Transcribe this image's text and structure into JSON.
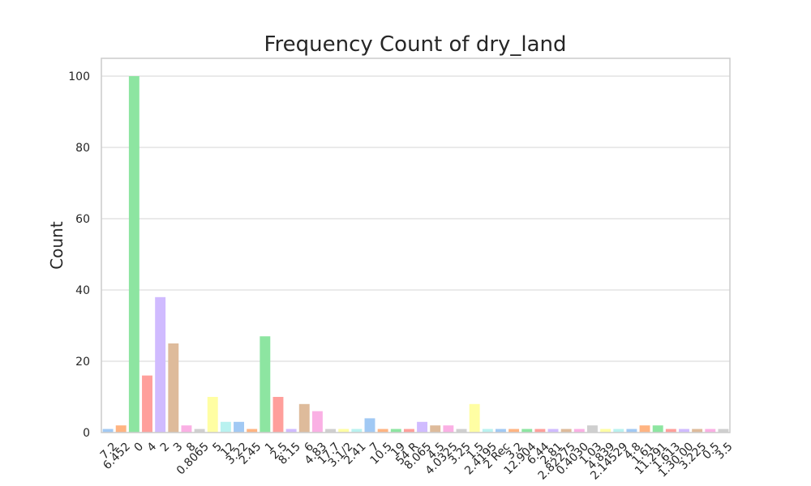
{
  "chart_data": {
    "type": "bar",
    "title": "Frequency Count of dry_land",
    "xlabel": "",
    "ylabel": "Count",
    "ylim": [
      0,
      105
    ],
    "yticks": [
      0,
      20,
      40,
      60,
      80,
      100
    ],
    "grid": true,
    "categories": [
      "7.2",
      "6.452",
      "0",
      "4",
      "2",
      "3",
      "8",
      "0.8065",
      "5",
      "12",
      "3.22",
      "2.45",
      "1",
      "2.5",
      "8.15",
      "6",
      "4.83",
      "17.7",
      "3.1/2",
      "2.41",
      "7",
      "10.5",
      "19",
      "54 R",
      "8.065",
      "4.5",
      "4.0325",
      "3.25",
      "1.5",
      "2.4195",
      "2 Rec",
      "3.2",
      "12.904",
      "6.44",
      "2.81",
      "2.82275",
      "0.4030",
      "1.03",
      "4.839",
      "2.14529",
      "4.8",
      "1.61",
      "11.291",
      "1.613",
      "1.30.00",
      "3.225",
      "0.5",
      "3.5"
    ],
    "values": [
      1,
      2,
      100,
      16,
      38,
      25,
      2,
      1,
      10,
      3,
      3,
      1,
      27,
      10,
      1,
      8,
      6,
      1,
      1,
      1,
      4,
      1,
      1,
      1,
      3,
      2,
      2,
      1,
      8,
      1,
      1,
      1,
      1,
      1,
      1,
      1,
      1,
      2,
      1,
      1,
      1,
      2,
      2,
      1,
      1,
      1,
      1,
      1
    ],
    "colors": [
      "#a1c9f4",
      "#ffb482",
      "#8de5a1",
      "#ff9f9b",
      "#d0bbff",
      "#debb9b",
      "#fab0e4",
      "#cfcfcf",
      "#fffea3",
      "#b9f2f0"
    ]
  }
}
